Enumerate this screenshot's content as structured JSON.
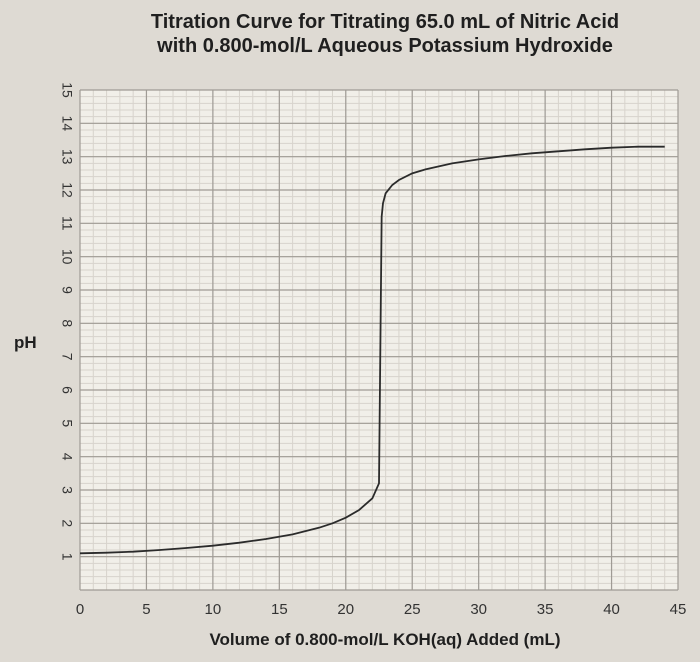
{
  "chart_data": {
    "type": "line",
    "title": "Titration Curve for Titrating 65.0 mL of Nitric Acid",
    "subtitle": "with 0.800-mol/L Aqueous Potassium Hydroxide",
    "xlabel": "Volume of 0.800-mol/L KOH(aq) Added (mL)",
    "ylabel": "pH",
    "xlim": [
      0,
      45
    ],
    "ylim": [
      0,
      15
    ],
    "xticks": [
      "0",
      "5",
      "10",
      "15",
      "20",
      "25",
      "30",
      "35",
      "40",
      "45"
    ],
    "yticks": [
      "1",
      "2",
      "3",
      "4",
      "5",
      "6",
      "7",
      "8",
      "9",
      "10",
      "11",
      "12",
      "13",
      "14",
      "15"
    ],
    "grid": true,
    "series": [
      {
        "x": [
          0,
          2,
          4,
          6,
          8,
          10,
          12,
          14,
          16,
          18,
          19,
          20,
          21,
          22,
          22.5,
          22.7,
          22.8,
          23,
          23.5,
          24,
          25,
          26,
          28,
          30,
          32,
          34,
          36,
          38,
          40,
          42,
          44
        ],
        "y": [
          1.1,
          1.12,
          1.15,
          1.2,
          1.26,
          1.33,
          1.42,
          1.53,
          1.67,
          1.87,
          2.0,
          2.17,
          2.4,
          2.75,
          3.2,
          11.2,
          11.6,
          11.9,
          12.15,
          12.3,
          12.5,
          12.62,
          12.8,
          12.92,
          13.02,
          13.1,
          13.16,
          13.22,
          13.27,
          13.3,
          13.3
        ],
        "color": "#2b2b2b"
      }
    ]
  }
}
